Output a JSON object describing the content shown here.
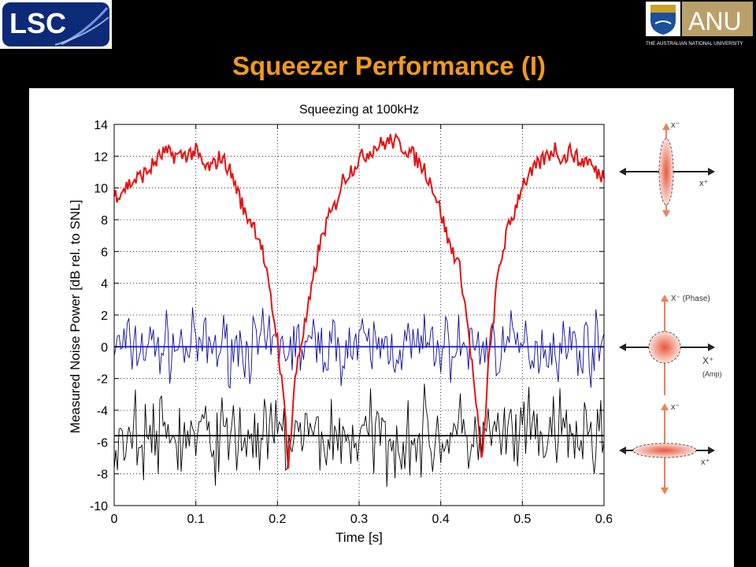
{
  "slide": {
    "title": "Squeezer Performance (I)",
    "lsc_logo_text": "LSC",
    "anu_logo_text": "ANU",
    "anu_university_text": "THE AUSTRALIAN NATIONAL UNIVERSITY",
    "title_color": "#f29a1a"
  },
  "chart_data": {
    "type": "line",
    "title": "Squeezing at 100kHz",
    "xlabel": "Time [s]",
    "ylabel": "Measured Noise Power [dB rel. to SNL]",
    "xlim": [
      0,
      0.6
    ],
    "ylim": [
      -10,
      14
    ],
    "xticks": [
      "0",
      "0.1",
      "0.2",
      "0.3",
      "0.4",
      "0.5",
      "0.6"
    ],
    "yticks": [
      "-10",
      "-8",
      "-6",
      "-4",
      "-2",
      "0",
      "2",
      "4",
      "6",
      "8",
      "10",
      "12",
      "14"
    ],
    "grid": true,
    "series": [
      {
        "color": "#e81010",
        "x": [
          0,
          0.02,
          0.04,
          0.06,
          0.08,
          0.1,
          0.11,
          0.12,
          0.13,
          0.14,
          0.15,
          0.16,
          0.17,
          0.18,
          0.19,
          0.195,
          0.2,
          0.205,
          0.21,
          0.213,
          0.216,
          0.22,
          0.225,
          0.23,
          0.24,
          0.25,
          0.26,
          0.27,
          0.28,
          0.3,
          0.32,
          0.34,
          0.36,
          0.38,
          0.39,
          0.4,
          0.41,
          0.42,
          0.425,
          0.43,
          0.435,
          0.44,
          0.445,
          0.448,
          0.452,
          0.456,
          0.46,
          0.465,
          0.47,
          0.48,
          0.49,
          0.5,
          0.51,
          0.52,
          0.53,
          0.54,
          0.55,
          0.56,
          0.57,
          0.58,
          0.59,
          0.6
        ],
        "values": [
          9.5,
          10.3,
          11,
          12.2,
          12,
          12.3,
          11.3,
          11.3,
          12,
          11.3,
          10,
          8.4,
          7.8,
          6.5,
          3.5,
          2,
          0.5,
          -2.2,
          -4.5,
          -7.5,
          -6,
          -3,
          -0.7,
          0.5,
          3,
          6,
          7.8,
          8.8,
          10.5,
          11.8,
          12.6,
          13,
          12.4,
          11.2,
          10.1,
          8.5,
          6.5,
          5.5,
          4.5,
          2.5,
          0.5,
          -2,
          -4.5,
          -6.5,
          -6.8,
          -3,
          0,
          2,
          4.5,
          7,
          8.5,
          10.3,
          10.8,
          11.5,
          12,
          12.5,
          11.8,
          12.4,
          11.6,
          11.8,
          11,
          10.8
        ]
      },
      {
        "color": "#0a0a9a",
        "x": [
          0,
          0.6
        ],
        "values": [
          0,
          0
        ],
        "noise_amplitude": 1
      },
      {
        "color": "#000000",
        "x": [
          0,
          0.6
        ],
        "values": [
          -5.7,
          -5.7
        ],
        "noise_amplitude": 1.3
      }
    ],
    "mean_lines": [
      {
        "color": "#1e1ed2",
        "value": 0
      },
      {
        "color": "#000000",
        "value": -5.6
      }
    ]
  },
  "diagrams": [
    {
      "axis_top": "x⁻",
      "axis_right": "x⁺"
    },
    {
      "axis_top": "X⁻ (Phase)",
      "axis_right": "X⁺",
      "axis_right_sub": "(Amp)"
    },
    {
      "axis_top": "x⁻",
      "axis_right": "x⁺"
    }
  ]
}
